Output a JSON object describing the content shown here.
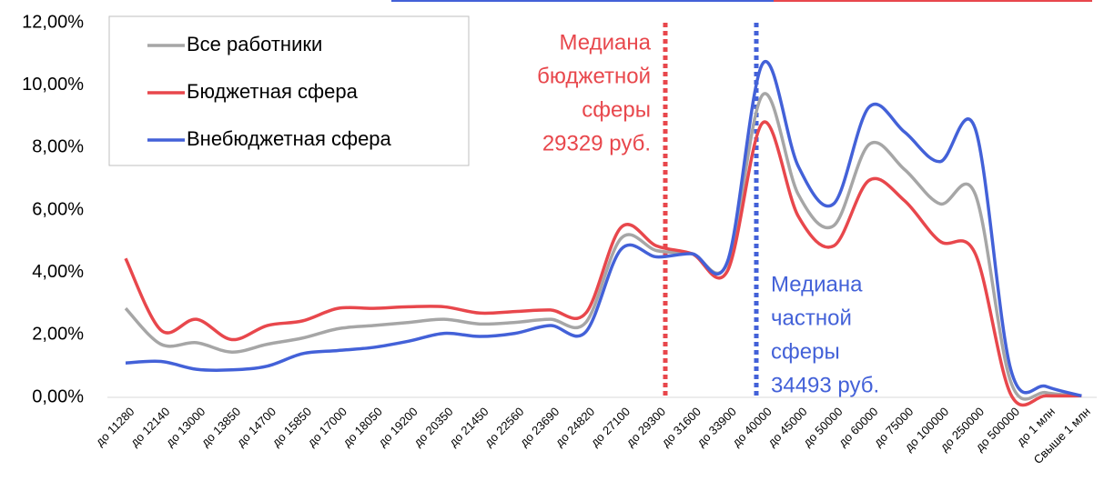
{
  "chart_data": {
    "type": "line",
    "categories": [
      "до 11280",
      "до 12140",
      "до 13000",
      "до 13850",
      "до 14700",
      "до 15850",
      "до 17000",
      "до 18050",
      "до 19200",
      "до 20350",
      "до 21450",
      "до 22560",
      "до 23690",
      "до 24820",
      "до 27100",
      "до 29300",
      "до 31600",
      "до 33900",
      "до 40000",
      "до 45000",
      "до 50000",
      "до 60000",
      "до 75000",
      "до 100000",
      "до 250000",
      "до 500000",
      "до 1 млн",
      "Свыше 1 млн"
    ],
    "series": [
      {
        "name": "Все работники",
        "color": "#a6a6a6",
        "values": [
          2.85,
          1.7,
          1.75,
          1.45,
          1.7,
          1.9,
          2.2,
          2.3,
          2.4,
          2.5,
          2.35,
          2.4,
          2.5,
          2.4,
          5.1,
          4.7,
          4.6,
          4.3,
          9.7,
          6.5,
          5.5,
          8.1,
          7.3,
          6.2,
          6.5,
          0.5,
          0.15,
          0.05
        ]
      },
      {
        "name": "Бюджетная сфера",
        "color": "#e8474c",
        "values": [
          4.45,
          2.15,
          2.5,
          1.85,
          2.3,
          2.45,
          2.85,
          2.85,
          2.9,
          2.9,
          2.7,
          2.75,
          2.8,
          2.7,
          5.45,
          4.85,
          4.6,
          4.05,
          8.8,
          5.8,
          4.85,
          6.95,
          6.3,
          5.0,
          4.6,
          0.1,
          0.05,
          0.05
        ]
      },
      {
        "name": "Внебюджетная сфера",
        "color": "#4361d8",
        "values": [
          1.1,
          1.15,
          0.9,
          0.88,
          1.0,
          1.4,
          1.5,
          1.6,
          1.8,
          2.05,
          1.95,
          2.05,
          2.3,
          2.1,
          4.75,
          4.5,
          4.6,
          4.35,
          10.7,
          7.4,
          6.2,
          9.3,
          8.5,
          7.55,
          8.6,
          0.9,
          0.35,
          0.05
        ]
      }
    ],
    "ylim": [
      0,
      12
    ],
    "yticks": [
      {
        "value": 0,
        "label": "0,00%"
      },
      {
        "value": 2,
        "label": "2,00%"
      },
      {
        "value": 4,
        "label": "4,00%"
      },
      {
        "value": 6,
        "label": "6,00%"
      },
      {
        "value": 8,
        "label": "8,00%"
      },
      {
        "value": 10,
        "label": "10,00%"
      },
      {
        "value": 12,
        "label": "12,00%"
      }
    ],
    "annotations": [
      {
        "lines": [
          "Медиана",
          "бюджетной",
          "сферы",
          "29329 руб."
        ],
        "color": "#e8474c"
      },
      {
        "lines": [
          "Медиана",
          "частной",
          "сферы",
          "34493 руб."
        ],
        "color": "#4361d8"
      }
    ]
  }
}
